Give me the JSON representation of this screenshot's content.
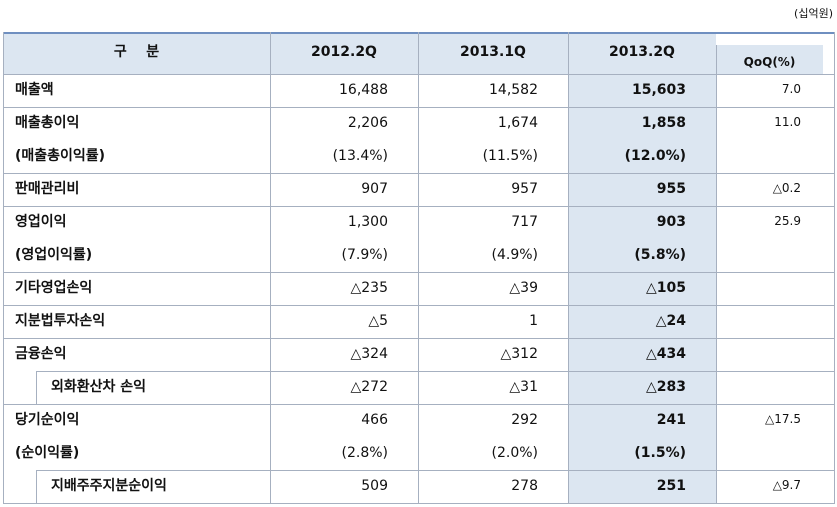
{
  "unit": "(십억원)",
  "table": {
    "header": [
      "구    분",
      "2012.2Q",
      "2013.1Q",
      "2013.2Q",
      "QoQ(%)"
    ],
    "groups": [
      {
        "rows": [
          {
            "label": "매출액",
            "values": [
              "16,488",
              "14,582",
              "15,603"
            ],
            "qoq": "7.0"
          }
        ]
      },
      {
        "rows": [
          {
            "label": "매출총이익",
            "values": [
              "2,206",
              "1,674",
              "1,858"
            ],
            "qoq": "11.0"
          },
          {
            "label": "(매출총이익률)",
            "values": [
              "(13.4%)",
              "(11.5%)",
              "(12.0%)"
            ]
          }
        ]
      },
      {
        "rows": [
          {
            "label": "판매관리비",
            "values": [
              "907",
              "957",
              "955"
            ],
            "qoq": "△0.2"
          }
        ]
      },
      {
        "rows": [
          {
            "label": "영업이익",
            "values": [
              "1,300",
              "717",
              "903"
            ],
            "qoq": "25.9"
          },
          {
            "label": "(영업이익률)",
            "values": [
              "(7.9%)",
              "(4.9%)",
              "(5.8%)"
            ]
          }
        ]
      },
      {
        "rows": [
          {
            "label": "기타영업손익",
            "values": [
              "△235",
              "△39",
              "△105"
            ]
          }
        ]
      },
      {
        "rows": [
          {
            "label": "지분법투자손익",
            "values": [
              "△5",
              "1",
              "△24"
            ]
          }
        ]
      },
      {
        "rows": [
          {
            "label": "금융손익",
            "values": [
              "△324",
              "△312",
              "△434"
            ]
          }
        ],
        "sub": {
          "label": "외화환산차 손익",
          "values": [
            "△272",
            "△31",
            "△283"
          ]
        }
      },
      {
        "rows": [
          {
            "label": "당기순이익",
            "values": [
              "466",
              "292",
              "241"
            ],
            "qoq": "△17.5"
          },
          {
            "label": "(순이익률)",
            "values": [
              "(2.8%)",
              "(2.0%)",
              "(1.5%)"
            ]
          }
        ],
        "sub": {
          "label": "지배주주지분순이익",
          "values": [
            "509",
            "278",
            "251"
          ],
          "qoq": "△9.7"
        }
      }
    ]
  }
}
